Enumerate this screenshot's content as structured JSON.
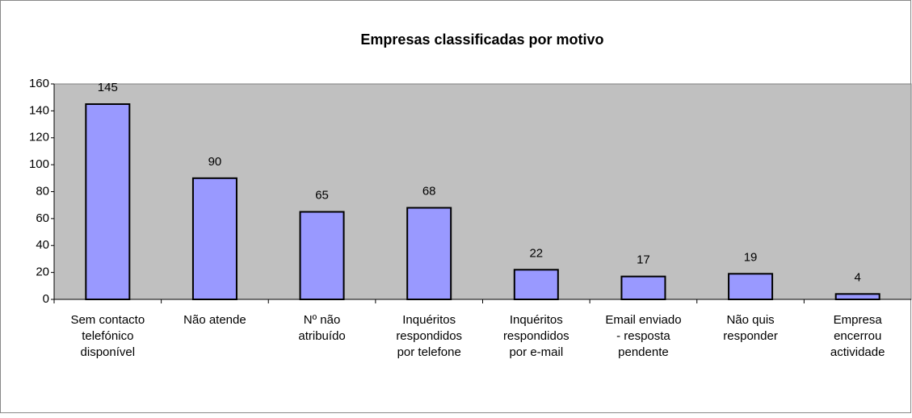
{
  "chart_data": {
    "type": "bar",
    "title": "Empresas classificadas por motivo",
    "categories": [
      "Sem contacto\ntelefónico\ndisponível",
      "Não atende",
      "Nº não\natribuído",
      "Inquéritos\nrespondidos\npor telefone",
      "Inquéritos\nrespondidos\npor e-mail",
      "Email enviado\n- resposta\npendente",
      "Não quis\nresponder",
      "Empresa\nencerrou\nactividade"
    ],
    "values": [
      145,
      90,
      65,
      68,
      22,
      17,
      19,
      4
    ],
    "color": "#9999ff",
    "plot_background": "#c0c0c0",
    "ylim": [
      0,
      160
    ],
    "yticks": [
      0,
      20,
      40,
      60,
      80,
      100,
      120,
      140,
      160
    ],
    "grid": false
  }
}
